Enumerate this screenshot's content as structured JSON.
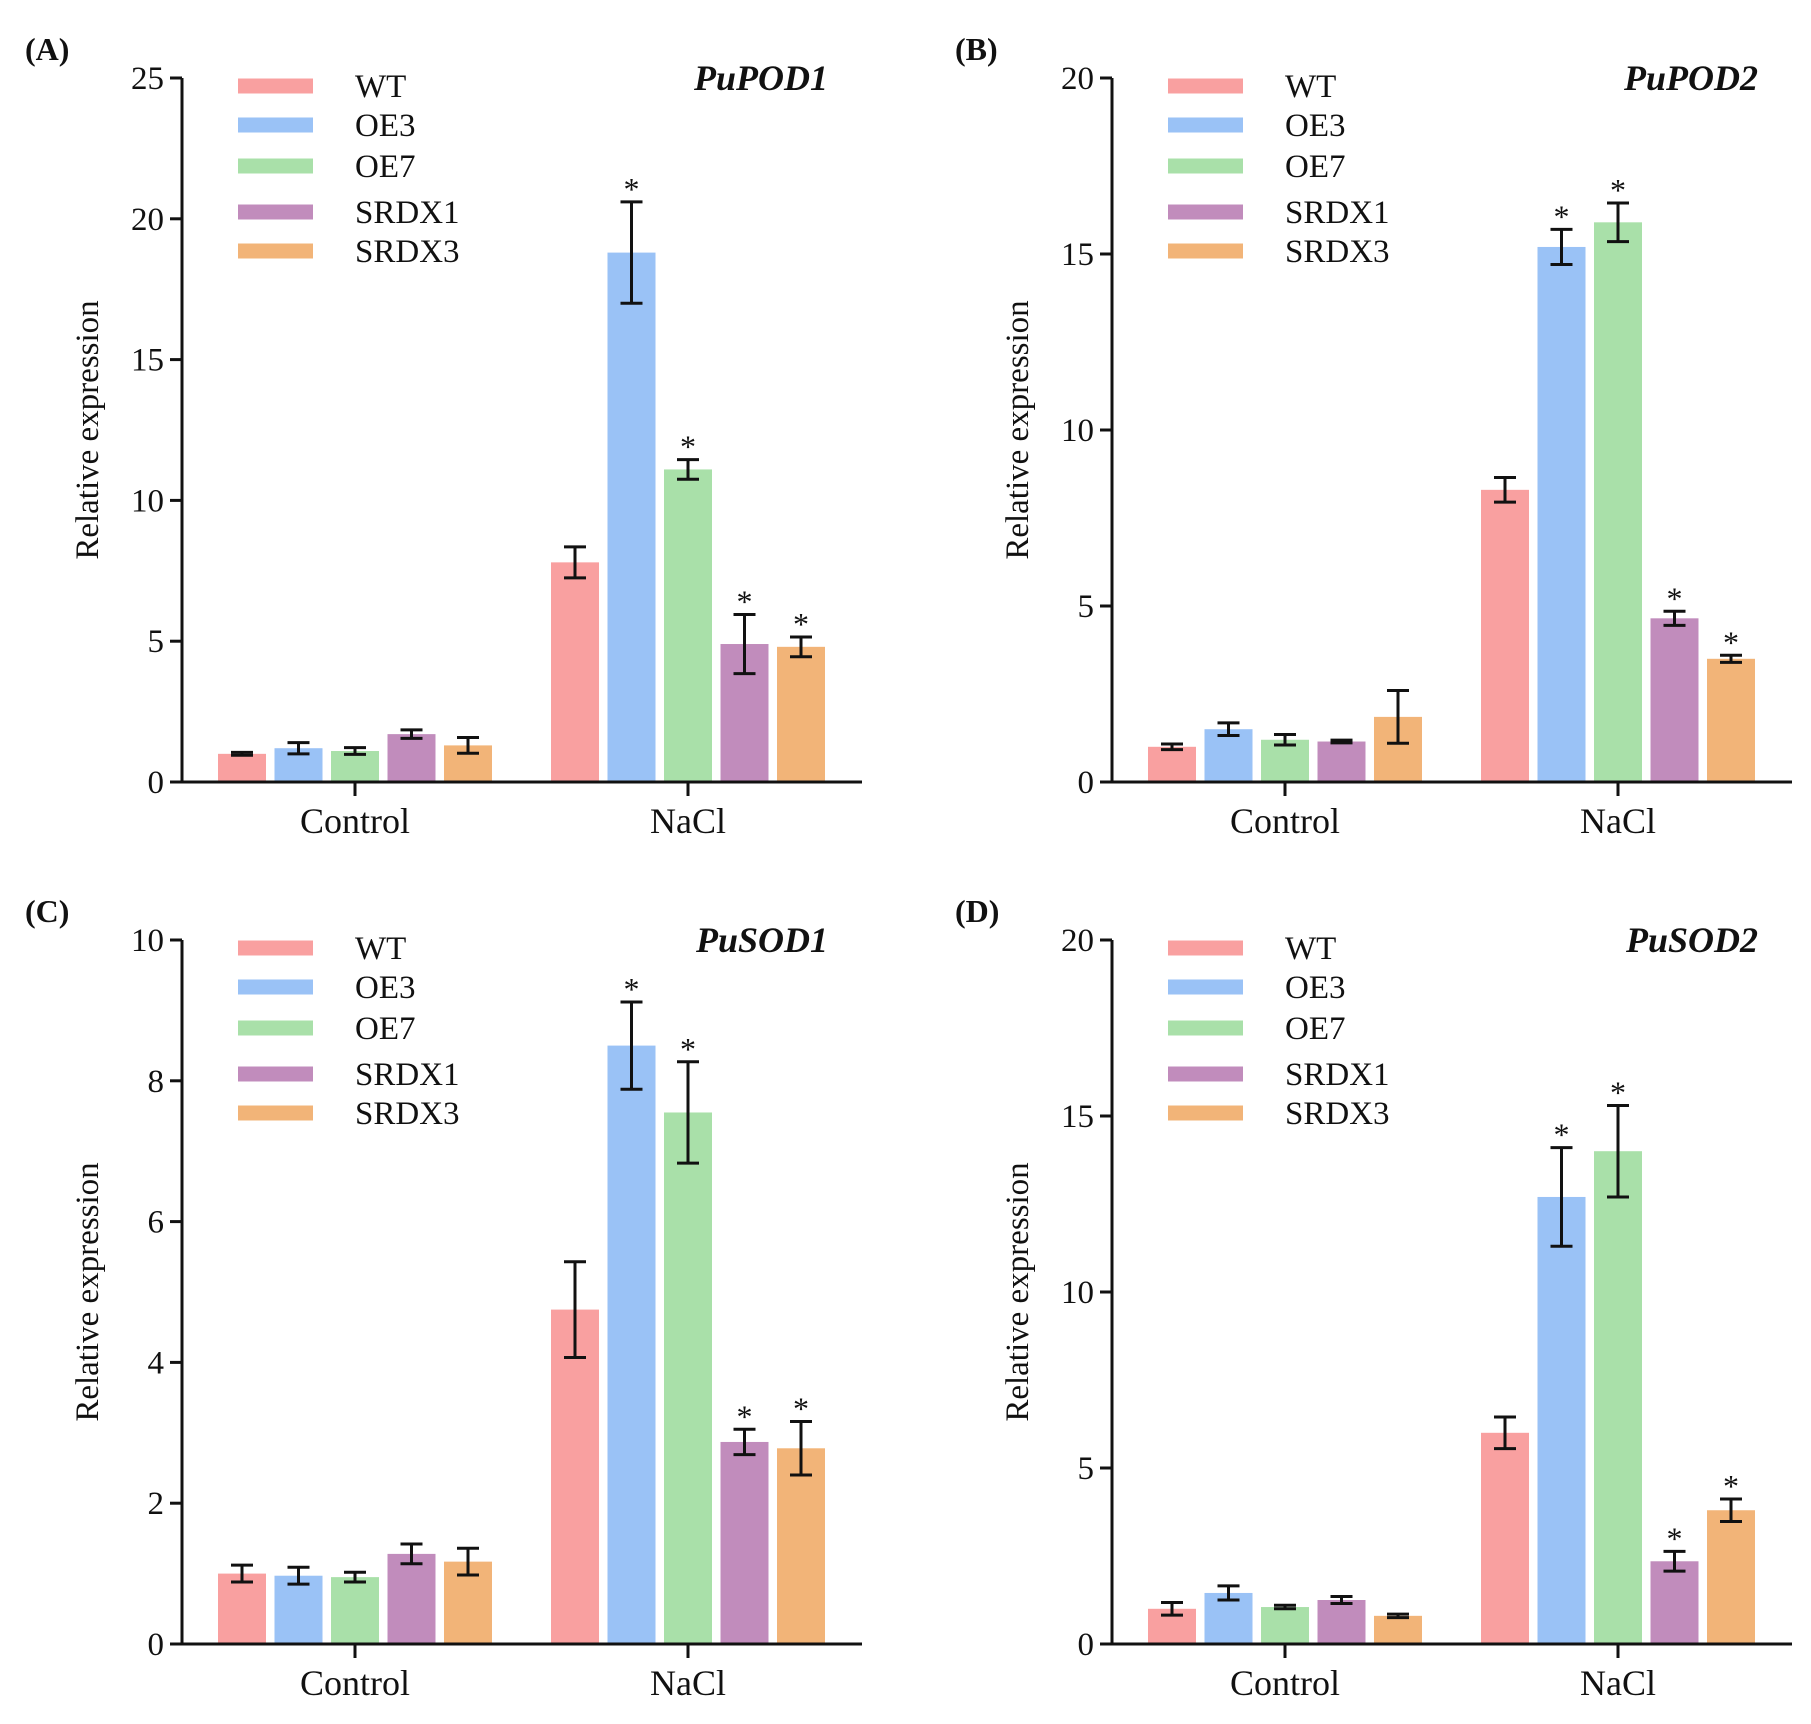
{
  "figure": {
    "legend": {
      "labels": [
        "WT",
        "OE3",
        "OE7",
        "SRDX1",
        "SRDX3"
      ]
    },
    "colors": [
      "#f9a0a0",
      "#9ac2f6",
      "#a9e0a9",
      "#c18cbc",
      "#f2b478"
    ],
    "significance_mark": "*"
  },
  "chart_data": [
    {
      "type": "bar",
      "panel": "(A)",
      "title": "PuPOD1",
      "xlabel": "",
      "ylabel": "Relative expression",
      "categories": [
        "Control",
        "NaCl"
      ],
      "ylim": [
        0,
        25
      ],
      "yticks": [
        0,
        5,
        10,
        15,
        20,
        25
      ],
      "series": [
        {
          "name": "WT",
          "values": [
            1.0,
            7.8
          ],
          "errors": [
            0.05,
            0.55
          ],
          "significant": [
            false,
            false
          ]
        },
        {
          "name": "OE3",
          "values": [
            1.2,
            18.8
          ],
          "errors": [
            0.2,
            1.8
          ],
          "significant": [
            false,
            true
          ]
        },
        {
          "name": "OE7",
          "values": [
            1.1,
            11.1
          ],
          "errors": [
            0.12,
            0.35
          ],
          "significant": [
            false,
            true
          ]
        },
        {
          "name": "SRDX1",
          "values": [
            1.7,
            4.9
          ],
          "errors": [
            0.15,
            1.05
          ],
          "significant": [
            false,
            true
          ]
        },
        {
          "name": "SRDX3",
          "values": [
            1.3,
            4.8
          ],
          "errors": [
            0.28,
            0.35
          ],
          "significant": [
            false,
            true
          ]
        }
      ]
    },
    {
      "type": "bar",
      "panel": "(B)",
      "title": "PuPOD2",
      "xlabel": "",
      "ylabel": "Relative expression",
      "categories": [
        "Control",
        "NaCl"
      ],
      "ylim": [
        0,
        20
      ],
      "yticks": [
        0,
        5,
        10,
        15,
        20
      ],
      "series": [
        {
          "name": "WT",
          "values": [
            1.0,
            8.3
          ],
          "errors": [
            0.08,
            0.35
          ],
          "significant": [
            false,
            false
          ]
        },
        {
          "name": "OE3",
          "values": [
            1.5,
            15.2
          ],
          "errors": [
            0.18,
            0.5
          ],
          "significant": [
            false,
            true
          ]
        },
        {
          "name": "OE7",
          "values": [
            1.2,
            15.9
          ],
          "errors": [
            0.15,
            0.55
          ],
          "significant": [
            false,
            true
          ]
        },
        {
          "name": "SRDX1",
          "values": [
            1.15,
            4.65
          ],
          "errors": [
            0.04,
            0.2
          ],
          "significant": [
            false,
            true
          ]
        },
        {
          "name": "SRDX3",
          "values": [
            1.85,
            3.5
          ],
          "errors": [
            0.75,
            0.1
          ],
          "significant": [
            false,
            true
          ]
        }
      ]
    },
    {
      "type": "bar",
      "panel": "(C)",
      "title": "PuSOD1",
      "xlabel": "",
      "ylabel": "Relative expression",
      "categories": [
        "Control",
        "NaCl"
      ],
      "ylim": [
        0,
        10
      ],
      "yticks": [
        0,
        2,
        4,
        6,
        8,
        10
      ],
      "series": [
        {
          "name": "WT",
          "values": [
            1.0,
            4.75
          ],
          "errors": [
            0.12,
            0.68
          ],
          "significant": [
            false,
            false
          ]
        },
        {
          "name": "OE3",
          "values": [
            0.97,
            8.5
          ],
          "errors": [
            0.12,
            0.62
          ],
          "significant": [
            false,
            true
          ]
        },
        {
          "name": "OE7",
          "values": [
            0.95,
            7.55
          ],
          "errors": [
            0.07,
            0.72
          ],
          "significant": [
            false,
            true
          ]
        },
        {
          "name": "SRDX1",
          "values": [
            1.28,
            2.87
          ],
          "errors": [
            0.14,
            0.18
          ],
          "significant": [
            false,
            true
          ]
        },
        {
          "name": "SRDX3",
          "values": [
            1.17,
            2.78
          ],
          "errors": [
            0.19,
            0.38
          ],
          "significant": [
            false,
            true
          ]
        }
      ]
    },
    {
      "type": "bar",
      "panel": "(D)",
      "title": "PuSOD2",
      "xlabel": "",
      "ylabel": "Relative expression",
      "categories": [
        "Control",
        "NaCl"
      ],
      "ylim": [
        0,
        20
      ],
      "yticks": [
        0,
        5,
        10,
        15,
        20
      ],
      "series": [
        {
          "name": "WT",
          "values": [
            1.0,
            6.0
          ],
          "errors": [
            0.18,
            0.45
          ],
          "significant": [
            false,
            false
          ]
        },
        {
          "name": "OE3",
          "values": [
            1.45,
            12.7
          ],
          "errors": [
            0.2,
            1.4
          ],
          "significant": [
            false,
            true
          ]
        },
        {
          "name": "OE7",
          "values": [
            1.05,
            14.0
          ],
          "errors": [
            0.05,
            1.3
          ],
          "significant": [
            false,
            true
          ]
        },
        {
          "name": "SRDX1",
          "values": [
            1.25,
            2.35
          ],
          "errors": [
            0.1,
            0.28
          ],
          "significant": [
            false,
            true
          ]
        },
        {
          "name": "SRDX3",
          "values": [
            0.8,
            3.8
          ],
          "errors": [
            0.05,
            0.32
          ],
          "significant": [
            false,
            true
          ]
        }
      ]
    }
  ]
}
